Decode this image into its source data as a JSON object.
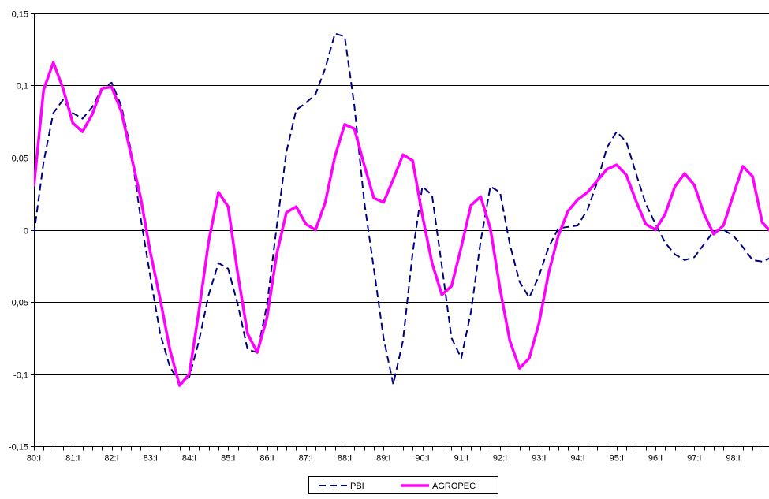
{
  "chart_data": {
    "type": "line",
    "title": "",
    "xlabel": "",
    "ylabel": "",
    "ylim": [
      -0.15,
      0.15
    ],
    "yticks": [
      0.15,
      0.1,
      0.05,
      0,
      -0.05,
      -0.1,
      -0.15
    ],
    "ytick_labels": [
      "0,15",
      "0,1",
      "0,05",
      "0",
      "-0,05",
      "-0,1",
      "-0,15"
    ],
    "grid": "horizontal",
    "legend_position": "bottom-center",
    "period_labels": [
      "80:I",
      "81:I",
      "82:I",
      "83:I",
      "84:I",
      "85:I",
      "86:I",
      "87:I",
      "88:I",
      "89:I",
      "90:I",
      "91:I",
      "92:I",
      "93:I",
      "94:I",
      "95:I",
      "96:I",
      "97:I",
      "98:I"
    ],
    "quarters_per_period": 4,
    "x": [
      "80:I",
      "80:II",
      "80:III",
      "80:IV",
      "81:I",
      "81:II",
      "81:III",
      "81:IV",
      "82:I",
      "82:II",
      "82:III",
      "82:IV",
      "83:I",
      "83:II",
      "83:III",
      "83:IV",
      "84:I",
      "84:II",
      "84:III",
      "84:IV",
      "85:I",
      "85:II",
      "85:III",
      "85:IV",
      "86:I",
      "86:II",
      "86:III",
      "86:IV",
      "87:I",
      "87:II",
      "87:III",
      "87:IV",
      "88:I",
      "88:II",
      "88:III",
      "88:IV",
      "89:I",
      "89:II",
      "89:III",
      "89:IV",
      "90:I",
      "90:II",
      "90:III",
      "90:IV",
      "91:I",
      "91:II",
      "91:III",
      "91:IV",
      "92:I",
      "92:II",
      "92:III",
      "92:IV",
      "93:I",
      "93:II",
      "93:III",
      "93:IV",
      "94:I",
      "94:II",
      "94:III",
      "94:IV",
      "95:I",
      "95:II",
      "95:III",
      "95:IV",
      "96:I",
      "96:II",
      "96:III",
      "96:IV",
      "97:I",
      "97:II",
      "97:III",
      "97:IV",
      "98:I",
      "98:II",
      "98:III",
      "98:IV",
      "99:I"
    ],
    "series": [
      {
        "name": "PBI",
        "color": "#000080",
        "style": "dashed",
        "values": [
          -0.003,
          0.047,
          0.081,
          0.09,
          0.081,
          0.077,
          0.085,
          0.098,
          0.102,
          0.086,
          0.055,
          0.008,
          -0.033,
          -0.072,
          -0.095,
          -0.106,
          -0.102,
          -0.077,
          -0.045,
          -0.023,
          -0.027,
          -0.052,
          -0.083,
          -0.085,
          -0.052,
          0.002,
          0.054,
          0.083,
          0.088,
          0.094,
          0.112,
          0.136,
          0.134,
          0.086,
          0.02,
          -0.027,
          -0.075,
          -0.107,
          -0.077,
          -0.016,
          0.03,
          0.024,
          -0.025,
          -0.075,
          -0.089,
          -0.057,
          -0.008,
          0.03,
          0.026,
          -0.01,
          -0.036,
          -0.047,
          -0.032,
          -0.012,
          0.001,
          0.002,
          0.003,
          0.014,
          0.033,
          0.057,
          0.068,
          0.061,
          0.039,
          0.018,
          0.004,
          -0.009,
          -0.017,
          -0.021,
          -0.019,
          -0.01,
          -0.001,
          0.0,
          -0.004,
          -0.012,
          -0.021,
          -0.022,
          -0.019
        ]
      },
      {
        "name": "AGROPEC",
        "color": "#ff00ff",
        "style": "solid",
        "values": [
          0.03,
          0.097,
          0.116,
          0.098,
          0.074,
          0.068,
          0.08,
          0.098,
          0.099,
          0.082,
          0.052,
          0.022,
          -0.016,
          -0.048,
          -0.083,
          -0.108,
          -0.1,
          -0.056,
          -0.008,
          0.026,
          0.016,
          -0.031,
          -0.072,
          -0.085,
          -0.061,
          -0.017,
          0.012,
          0.016,
          0.004,
          0.0,
          0.019,
          0.051,
          0.073,
          0.07,
          0.045,
          0.022,
          0.019,
          0.035,
          0.052,
          0.048,
          0.01,
          -0.023,
          -0.045,
          -0.039,
          -0.012,
          0.017,
          0.023,
          0.001,
          -0.041,
          -0.077,
          -0.096,
          -0.089,
          -0.065,
          -0.03,
          -0.004,
          0.013,
          0.021,
          0.026,
          0.034,
          0.042,
          0.045,
          0.038,
          0.02,
          0.004,
          0.0,
          0.011,
          0.03,
          0.039,
          0.031,
          0.011,
          -0.003,
          0.003,
          0.024,
          0.044,
          0.037,
          0.005,
          -0.002
        ]
      }
    ]
  }
}
